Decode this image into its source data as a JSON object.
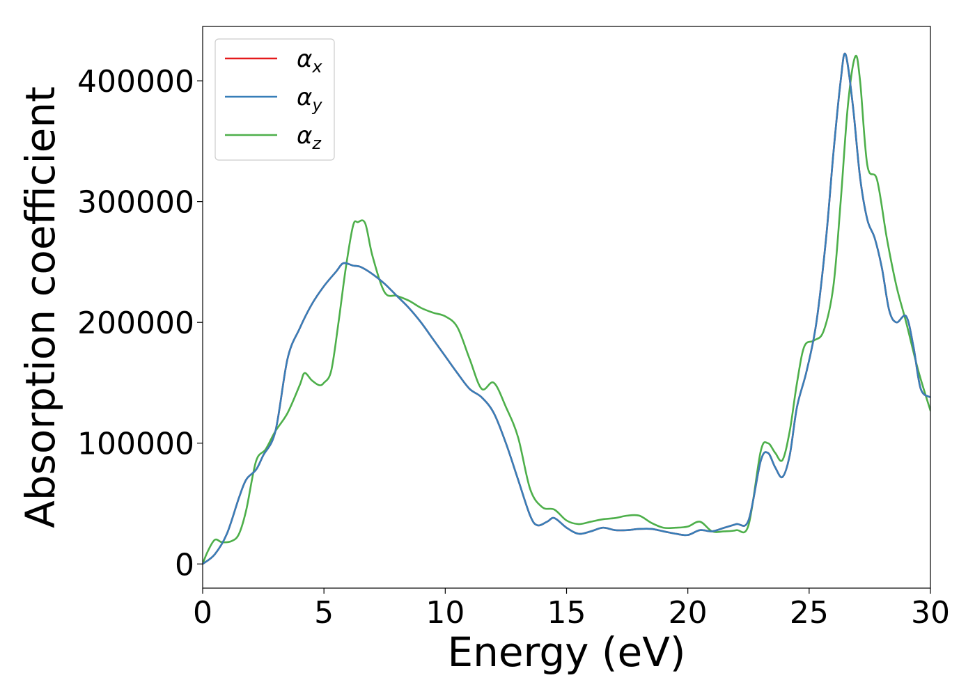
{
  "chart_data": {
    "type": "line",
    "xlabel": "Energy (eV)",
    "ylabel": "Absorption coefficient",
    "xlim": [
      0,
      30
    ],
    "ylim": [
      -20000,
      445000
    ],
    "xticks": [
      0,
      5,
      10,
      15,
      20,
      25,
      30
    ],
    "xtick_labels": [
      "0",
      "5",
      "10",
      "15",
      "20",
      "25",
      "30"
    ],
    "yticks": [
      0,
      100000,
      200000,
      300000,
      400000
    ],
    "ytick_labels": [
      "0",
      "100000",
      "200000",
      "300000",
      "400000"
    ],
    "grid": false,
    "legend_position": "top-left",
    "series": [
      {
        "name": "α_x",
        "base": "α",
        "sub": "x",
        "color": "#e41a1c",
        "x": [
          0,
          0.5,
          1,
          1.5,
          1.8,
          2.2,
          2.5,
          3,
          3.5,
          4,
          4.5,
          5,
          5.5,
          5.8,
          6.2,
          6.5,
          7,
          7.5,
          8,
          8.5,
          9,
          9.5,
          10,
          10.5,
          11,
          11.5,
          12,
          12.5,
          13,
          13.5,
          13.8,
          14.2,
          14.5,
          15,
          15.5,
          16,
          16.5,
          17,
          17.5,
          18,
          18.5,
          19,
          19.5,
          20,
          20.5,
          21,
          21.5,
          22,
          22.5,
          23,
          23.3,
          23.6,
          23.9,
          24.2,
          24.5,
          24.9,
          25.3,
          25.7,
          26,
          26.3,
          26.5,
          26.8,
          27.1,
          27.4,
          27.7,
          28,
          28.3,
          28.6,
          29,
          29.3,
          29.6,
          30
        ],
        "y": [
          0,
          8000,
          25000,
          55000,
          70000,
          78000,
          90000,
          110000,
          170000,
          195000,
          215000,
          230000,
          242000,
          249000,
          247000,
          246000,
          240000,
          232000,
          222000,
          212000,
          200000,
          186000,
          172000,
          158000,
          145000,
          138000,
          125000,
          100000,
          70000,
          40000,
          32000,
          35000,
          38000,
          30000,
          25000,
          27000,
          30000,
          28000,
          28000,
          29000,
          29000,
          27000,
          25000,
          24000,
          28000,
          27000,
          30000,
          33000,
          36000,
          85000,
          92000,
          80000,
          72000,
          90000,
          130000,
          160000,
          200000,
          270000,
          340000,
          400000,
          422000,
          380000,
          320000,
          285000,
          270000,
          245000,
          210000,
          200000,
          205000,
          180000,
          145000,
          138000
        ]
      },
      {
        "name": "α_y",
        "base": "α",
        "sub": "y",
        "color": "#377eb8",
        "x": [
          0,
          0.5,
          1,
          1.5,
          1.8,
          2.2,
          2.5,
          3,
          3.5,
          4,
          4.5,
          5,
          5.5,
          5.8,
          6.2,
          6.5,
          7,
          7.5,
          8,
          8.5,
          9,
          9.5,
          10,
          10.5,
          11,
          11.5,
          12,
          12.5,
          13,
          13.5,
          13.8,
          14.2,
          14.5,
          15,
          15.5,
          16,
          16.5,
          17,
          17.5,
          18,
          18.5,
          19,
          19.5,
          20,
          20.5,
          21,
          21.5,
          22,
          22.5,
          23,
          23.3,
          23.6,
          23.9,
          24.2,
          24.5,
          24.9,
          25.3,
          25.7,
          26,
          26.3,
          26.5,
          26.8,
          27.1,
          27.4,
          27.7,
          28,
          28.3,
          28.6,
          29,
          29.3,
          29.6,
          30
        ],
        "y": [
          0,
          8000,
          25000,
          55000,
          70000,
          78000,
          90000,
          110000,
          170000,
          195000,
          215000,
          230000,
          242000,
          249000,
          247000,
          246000,
          240000,
          232000,
          222000,
          212000,
          200000,
          186000,
          172000,
          158000,
          145000,
          138000,
          125000,
          100000,
          70000,
          40000,
          32000,
          35000,
          38000,
          30000,
          25000,
          27000,
          30000,
          28000,
          28000,
          29000,
          29000,
          27000,
          25000,
          24000,
          28000,
          27000,
          30000,
          33000,
          36000,
          85000,
          92000,
          80000,
          72000,
          90000,
          130000,
          160000,
          200000,
          270000,
          340000,
          400000,
          422000,
          380000,
          320000,
          285000,
          270000,
          245000,
          210000,
          200000,
          205000,
          180000,
          145000,
          138000
        ]
      },
      {
        "name": "α_z",
        "base": "α",
        "sub": "z",
        "color": "#4daf4a",
        "x": [
          0,
          0.2,
          0.5,
          0.8,
          1.2,
          1.5,
          1.8,
          2.2,
          2.6,
          3,
          3.5,
          4,
          4.2,
          4.5,
          4.8,
          5,
          5.3,
          5.6,
          5.9,
          6.2,
          6.4,
          6.7,
          7,
          7.5,
          8,
          8.5,
          9,
          9.5,
          10,
          10.5,
          11,
          11.5,
          12,
          12.5,
          13,
          13.5,
          14,
          14.5,
          15,
          15.5,
          16,
          16.5,
          17,
          17.5,
          18,
          18.5,
          19,
          19.5,
          20,
          20.5,
          21,
          21.5,
          22,
          22.5,
          23,
          23.3,
          23.6,
          23.9,
          24.2,
          24.5,
          24.8,
          25.2,
          25.6,
          26,
          26.3,
          26.6,
          26.9,
          27.1,
          27.4,
          27.8,
          28.2,
          28.6,
          29,
          29.5,
          30
        ],
        "y": [
          0,
          10000,
          20000,
          18000,
          19000,
          25000,
          45000,
          85000,
          95000,
          110000,
          125000,
          148000,
          158000,
          152000,
          148000,
          150000,
          160000,
          200000,
          245000,
          280000,
          283000,
          282000,
          255000,
          225000,
          222000,
          218000,
          212000,
          208000,
          205000,
          196000,
          170000,
          145000,
          150000,
          130000,
          105000,
          62000,
          47000,
          45000,
          36000,
          33000,
          35000,
          37000,
          38000,
          40000,
          40000,
          34000,
          30000,
          30000,
          31000,
          35000,
          27000,
          27000,
          28000,
          32000,
          93000,
          100000,
          92000,
          86000,
          110000,
          150000,
          180000,
          185000,
          193000,
          230000,
          300000,
          380000,
          420000,
          400000,
          330000,
          318000,
          270000,
          230000,
          200000,
          160000,
          127000
        ]
      }
    ]
  }
}
